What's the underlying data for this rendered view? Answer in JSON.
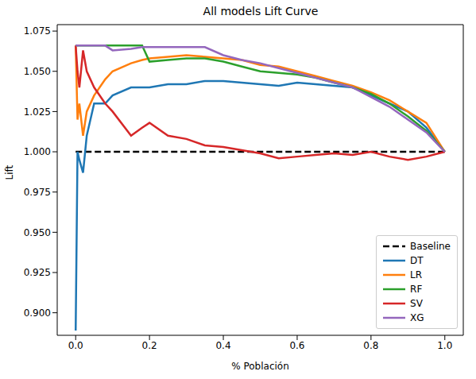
{
  "chart_data": {
    "type": "line",
    "title": "All models Lift Curve",
    "x_label": "% Población",
    "y_label": "Lift",
    "x": [
      0,
      0.005,
      0.01,
      0.02,
      0.03,
      0.05,
      0.08,
      0.1,
      0.15,
      0.18,
      0.2,
      0.25,
      0.3,
      0.35,
      0.4,
      0.45,
      0.5,
      0.55,
      0.6,
      0.65,
      0.7,
      0.75,
      0.8,
      0.85,
      0.9,
      0.95,
      1.0
    ],
    "series": [
      {
        "name": "Baseline",
        "color": "#000000",
        "line_style": "dashed",
        "values": [
          1,
          1,
          1,
          1,
          1,
          1,
          1,
          1,
          1,
          1,
          1,
          1,
          1,
          1,
          1,
          1,
          1,
          1,
          1,
          1,
          1,
          1,
          1,
          1,
          1,
          1,
          1
        ]
      },
      {
        "name": "DT",
        "color": "#1f77b4",
        "line_style": "solid",
        "values": [
          0.889,
          1.0,
          0.995,
          0.987,
          1.01,
          1.03,
          1.03,
          1.035,
          1.04,
          1.04,
          1.04,
          1.042,
          1.042,
          1.044,
          1.044,
          1.043,
          1.042,
          1.041,
          1.043,
          1.042,
          1.041,
          1.04,
          1.035,
          1.03,
          1.025,
          1.015,
          1.0
        ]
      },
      {
        "name": "LR",
        "color": "#ff7f0e",
        "line_style": "solid",
        "values": [
          1.066,
          1.02,
          1.03,
          1.01,
          1.025,
          1.035,
          1.045,
          1.05,
          1.055,
          1.057,
          1.058,
          1.059,
          1.06,
          1.059,
          1.058,
          1.057,
          1.054,
          1.053,
          1.05,
          1.047,
          1.044,
          1.041,
          1.037,
          1.032,
          1.025,
          1.018,
          1.0
        ]
      },
      {
        "name": "RF",
        "color": "#2ca02c",
        "line_style": "solid",
        "values": [
          1.066,
          1.066,
          1.066,
          1.066,
          1.066,
          1.066,
          1.066,
          1.066,
          1.066,
          1.066,
          1.056,
          1.057,
          1.058,
          1.058,
          1.056,
          1.053,
          1.05,
          1.049,
          1.048,
          1.046,
          1.043,
          1.04,
          1.036,
          1.03,
          1.022,
          1.013,
          1.0
        ]
      },
      {
        "name": "SV",
        "color": "#d62728",
        "line_style": "solid",
        "values": [
          1.066,
          1.05,
          1.04,
          1.063,
          1.05,
          1.04,
          1.03,
          1.025,
          1.01,
          1.015,
          1.018,
          1.01,
          1.008,
          1.004,
          1.003,
          1.001,
          0.999,
          0.996,
          0.997,
          0.998,
          0.999,
          0.998,
          1.0,
          0.997,
          0.995,
          0.997,
          1.0
        ]
      },
      {
        "name": "XG",
        "color": "#9467bd",
        "line_style": "solid",
        "values": [
          1.066,
          1.066,
          1.066,
          1.066,
          1.066,
          1.066,
          1.066,
          1.063,
          1.064,
          1.065,
          1.065,
          1.065,
          1.065,
          1.065,
          1.06,
          1.057,
          1.055,
          1.052,
          1.049,
          1.046,
          1.043,
          1.04,
          1.034,
          1.028,
          1.02,
          1.012,
          1.0
        ]
      }
    ],
    "xlim": [
      -0.05,
      1.05
    ],
    "xticks": [
      {
        "value": 0,
        "label": "0.0"
      },
      0.2,
      0.4,
      0.6,
      0.8,
      {
        "value": 1,
        "label": "1.0"
      }
    ],
    "ylim": [
      0.886,
      1.079
    ],
    "yticks": [
      {
        "value": 0.9,
        "label": "0.900"
      },
      0.925,
      {
        "value": 0.95,
        "label": "0.950"
      },
      0.975,
      {
        "value": 1,
        "label": "1.000"
      },
      1.025,
      {
        "value": 1.05,
        "label": "1.050"
      },
      1.075
    ],
    "grid": false,
    "legend": "lower right"
  }
}
